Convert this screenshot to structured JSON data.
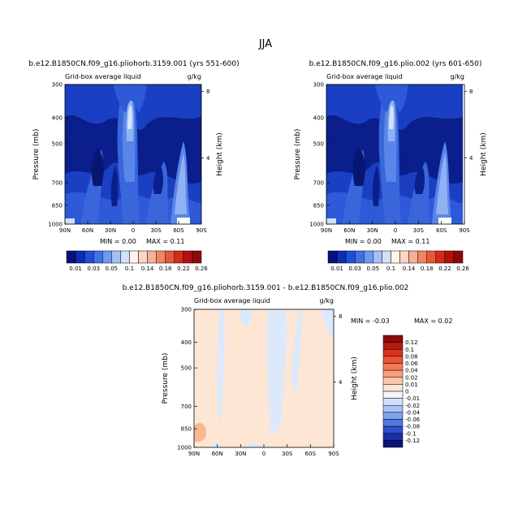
{
  "season": "JJA",
  "panels": [
    {
      "title": "b.e12.B1850CN.f09_g16.pliohorb.3159.001 (yrs 551-600)",
      "var_label": "Grid-box average liquid",
      "units": "g/kg",
      "min_text": "MIN =    0.00",
      "max_text": "MAX =    0.11"
    },
    {
      "title": "b.e12.B1850CN.f09_g16.plio.002 (yrs 601-650)",
      "var_label": "Grid-box average liquid",
      "units": "g/kg",
      "min_text": "MIN =    0.00",
      "max_text": "MAX =    0.11"
    },
    {
      "title": "b.e12.B1850CN.f09_g16.pliohorb.3159.001 - b.e12.B1850CN.f09_g16.plio.002",
      "var_label": "Grid-box average liquid",
      "units": "g/kg",
      "min_text": "MIN =   -0.03",
      "max_text": "MAX =    0.02"
    }
  ],
  "chart_data": [
    {
      "type": "heatmap",
      "subtype": "filled-contour latitude-pressure cross-section",
      "title": "b.e12.B1850CN.f09_g16.pliohorb.3159.001 (yrs 551-600)",
      "ylabel": "Pressure (mb)",
      "y2label": "Height (km)",
      "x_ticks": [
        "90N",
        "60N",
        "30N",
        "0",
        "30S",
        "60S",
        "90S"
      ],
      "y_ticks": [
        "300",
        "400",
        "500",
        "700",
        "850",
        "1000"
      ],
      "y2_ticks": [
        "8",
        "4"
      ],
      "min": 0.0,
      "max": 0.11
    },
    {
      "type": "heatmap",
      "subtype": "filled-contour latitude-pressure cross-section",
      "title": "b.e12.B1850CN.f09_g16.plio.002 (yrs 601-650)",
      "ylabel": "Pressure (mb)",
      "y2label": "Height (km)",
      "x_ticks": [
        "90N",
        "60N",
        "30N",
        "0",
        "30S",
        "60S",
        "90S"
      ],
      "y_ticks": [
        "300",
        "400",
        "500",
        "700",
        "850",
        "1000"
      ],
      "y2_ticks": [
        "8",
        "4"
      ],
      "min": 0.0,
      "max": 0.11
    },
    {
      "type": "heatmap",
      "subtype": "difference filled-contour cross-section",
      "title": "b.e12.B1850CN.f09_g16.pliohorb.3159.001 - b.e12.B1850CN.f09_g16.plio.002",
      "ylabel": "Pressure (mb)",
      "y2label": "Height (km)",
      "x_ticks": [
        "90N",
        "60N",
        "30N",
        "0",
        "30S",
        "60S",
        "90S"
      ],
      "y_ticks": [
        "300",
        "400",
        "500",
        "700",
        "850",
        "1000"
      ],
      "y2_ticks": [
        "8",
        "4"
      ],
      "min": -0.03,
      "max": 0.02
    }
  ],
  "colorbar_top": {
    "labels": [
      "0.01",
      "0.03",
      "0.05",
      "0.1",
      "0.14",
      "0.18",
      "0.22",
      "0.26"
    ],
    "colors": [
      "#08107a",
      "#0d2cb8",
      "#1f4fd6",
      "#3f70e6",
      "#6e98ef",
      "#a2c0f5",
      "#cfe0fa",
      "#fdf3e9",
      "#fcd6c1",
      "#f8b094",
      "#f28464",
      "#e85838",
      "#d42c1a",
      "#b41010",
      "#900808"
    ]
  },
  "colorbar_diff": {
    "labels": [
      "0.12",
      "0.1",
      "0.08",
      "0.06",
      "0.04",
      "0.02",
      "0.01",
      "0",
      "-0.01",
      "-0.02",
      "-0.04",
      "-0.06",
      "-0.08",
      "-0.1",
      "-0.12"
    ],
    "colors": [
      "#8c0a0a",
      "#b81810",
      "#d8321e",
      "#ec5434",
      "#f47a54",
      "#f9a07c",
      "#fcc7a8",
      "#fde6d4",
      "#f4f6fb",
      "#cfe0fa",
      "#a8c4f5",
      "#7ea2ee",
      "#5278e2",
      "#2e50cf",
      "#1a2ea8",
      "#0a1478"
    ]
  }
}
